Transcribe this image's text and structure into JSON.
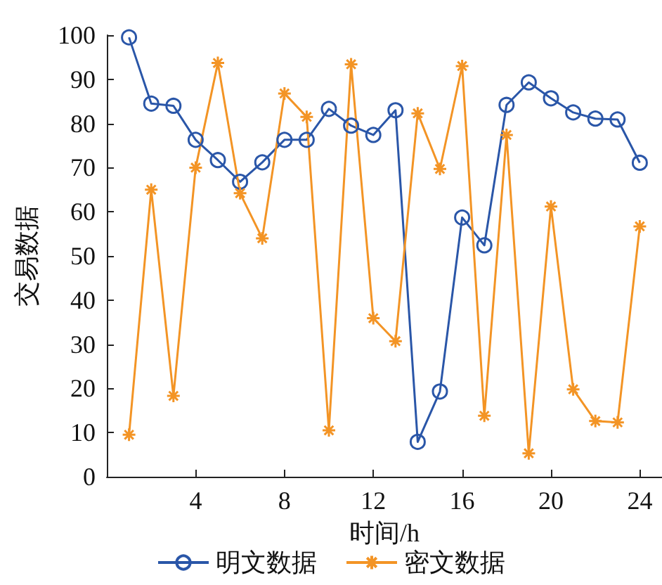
{
  "chart_data": {
    "type": "line",
    "xlabel": "时间/h",
    "ylabel": "交易数据",
    "x": [
      1,
      2,
      3,
      4,
      5,
      6,
      7,
      8,
      9,
      10,
      11,
      12,
      13,
      14,
      15,
      16,
      17,
      18,
      19,
      20,
      21,
      22,
      23,
      24
    ],
    "series": [
      {
        "name": "明文数据",
        "color": "#2a56a8",
        "marker": "circle",
        "values": [
          99.5,
          84.5,
          84,
          76.3,
          71.7,
          66.8,
          71.2,
          76.3,
          76.3,
          83.3,
          79.5,
          77.4,
          83,
          7.9,
          19.3,
          58.7,
          52.4,
          84.2,
          89.3,
          85.7,
          82.5,
          81.1,
          80.9,
          71.1
        ]
      },
      {
        "name": "密文数据",
        "color": "#f39425",
        "marker": "cross",
        "values": [
          9.5,
          65,
          18.3,
          70,
          93.7,
          64.2,
          54,
          86.8,
          81.5,
          10.5,
          93.4,
          35.9,
          30.7,
          82.3,
          69.7,
          93,
          13.8,
          77.4,
          5.3,
          61.2,
          19.8,
          12.6,
          12.3,
          56.7
        ]
      }
    ],
    "xlim": [
      0,
      25
    ],
    "xticks": [
      4,
      8,
      12,
      16,
      20,
      24
    ],
    "ylim": [
      0,
      100
    ],
    "yticks": [
      0,
      10,
      20,
      30,
      40,
      50,
      60,
      70,
      80,
      90,
      100
    ],
    "grid": false,
    "legend": "bottom",
    "line_style": "solid"
  }
}
